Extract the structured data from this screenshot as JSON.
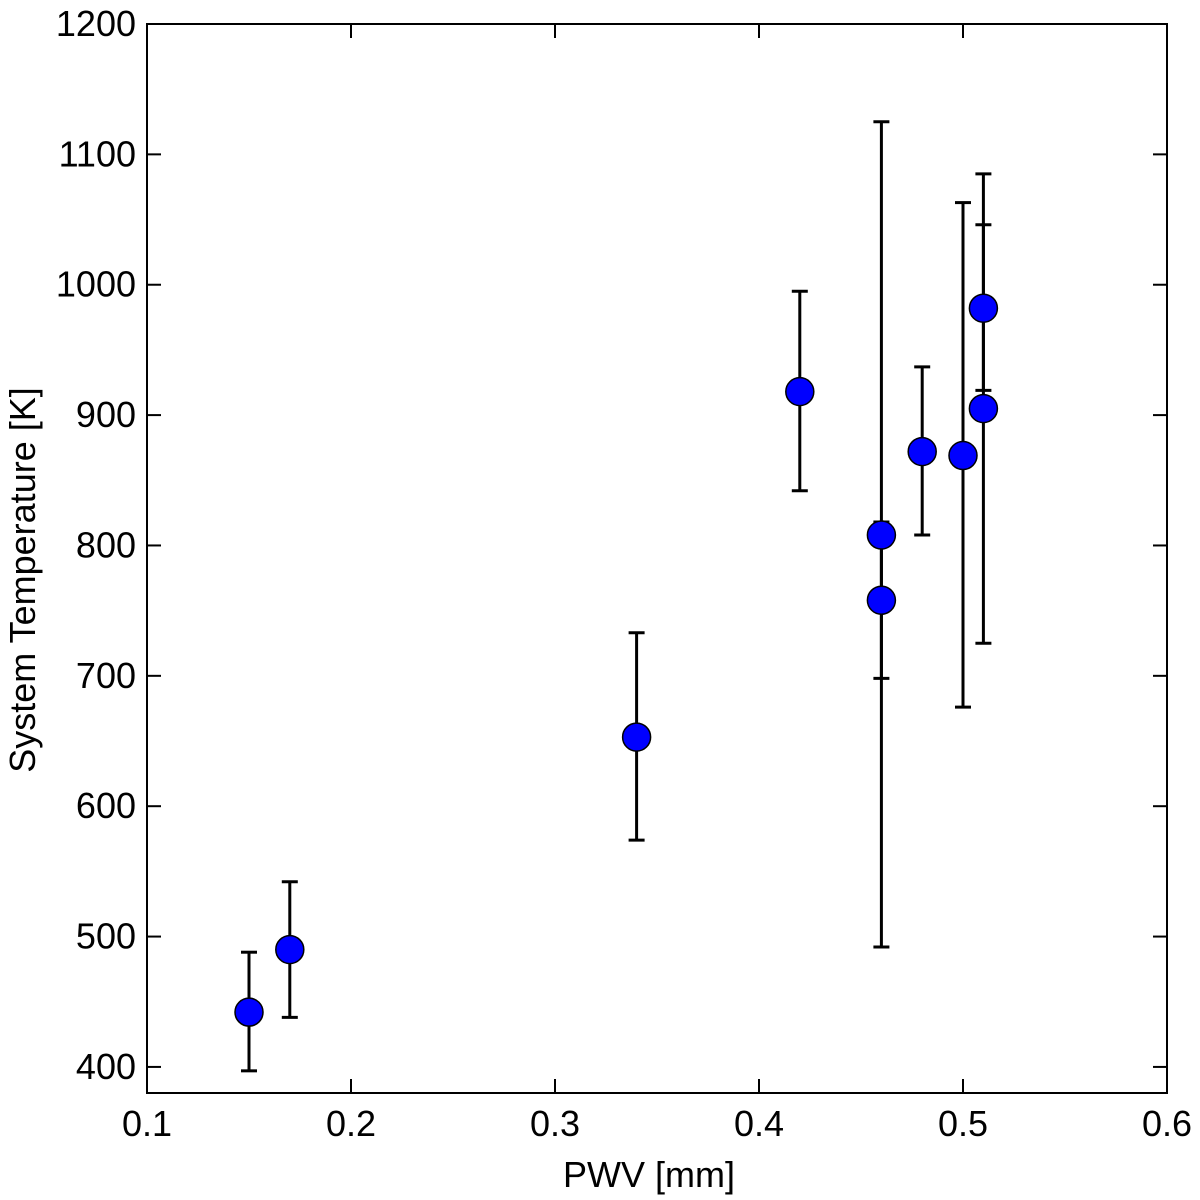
{
  "chart_data": {
    "type": "scatter",
    "xlabel": "PWV [mm]",
    "ylabel": "System Temperature [K]",
    "xlim": [
      0.1,
      0.6
    ],
    "ylim": [
      380,
      1200
    ],
    "x_ticks": [
      0.1,
      0.2,
      0.3,
      0.4,
      0.5,
      0.6
    ],
    "x_tick_labels": [
      "0.1",
      "0.2",
      "0.3",
      "0.4",
      "0.5",
      "0.6"
    ],
    "y_ticks": [
      400,
      500,
      600,
      700,
      800,
      900,
      1000,
      1100,
      1200
    ],
    "y_tick_labels": [
      "400",
      "500",
      "600",
      "700",
      "800",
      "900",
      "1000",
      "1100",
      "1200"
    ],
    "grid": false,
    "legend": false,
    "marker_color": "#0000ff",
    "points": [
      {
        "x": 0.15,
        "y": 442,
        "ylow": 397,
        "yhigh": 488
      },
      {
        "x": 0.17,
        "y": 490,
        "ylow": 438,
        "yhigh": 542
      },
      {
        "x": 0.34,
        "y": 653,
        "ylow": 574,
        "yhigh": 733
      },
      {
        "x": 0.42,
        "y": 918,
        "ylow": 842,
        "yhigh": 995
      },
      {
        "x": 0.46,
        "y": 808,
        "ylow": 492,
        "yhigh": 1125
      },
      {
        "x": 0.46,
        "y": 758,
        "ylow": 698,
        "yhigh": 818
      },
      {
        "x": 0.48,
        "y": 872,
        "ylow": 808,
        "yhigh": 937
      },
      {
        "x": 0.5,
        "y": 869,
        "ylow": 676,
        "yhigh": 1063
      },
      {
        "x": 0.51,
        "y": 982,
        "ylow": 919,
        "yhigh": 1046
      },
      {
        "x": 0.51,
        "y": 905,
        "ylow": 725,
        "yhigh": 1085
      }
    ]
  }
}
